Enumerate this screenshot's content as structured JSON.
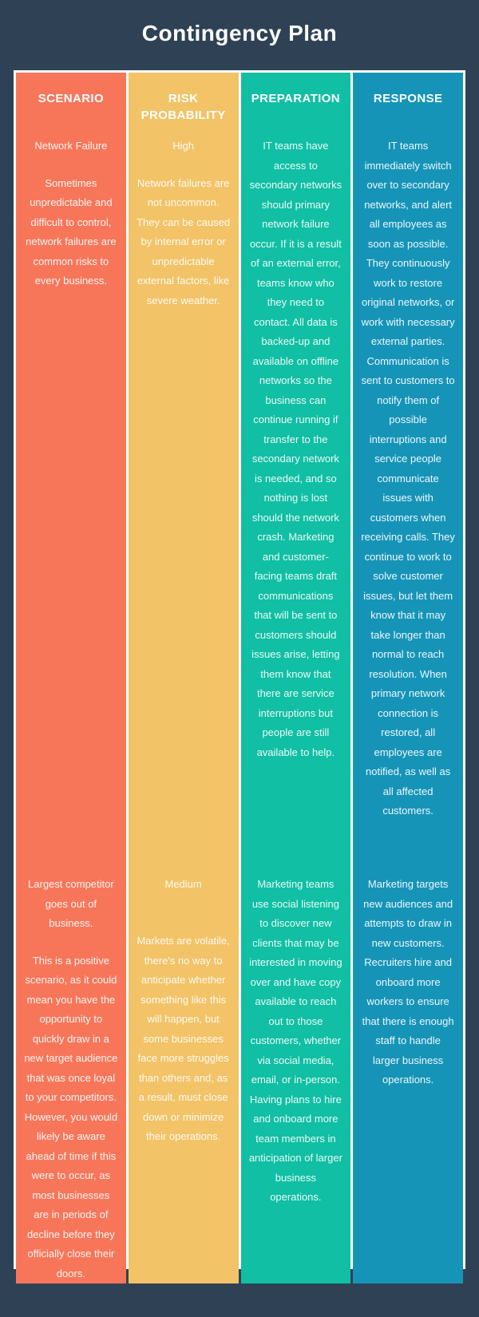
{
  "title": "Contingency Plan",
  "colors": {
    "background": "#2f4255",
    "table_border": "#ffffff",
    "scenario": "#f7765a",
    "risk_probability": "#f2c367",
    "preparation": "#10bfa4",
    "response": "#1694b8"
  },
  "table": {
    "columns": [
      {
        "header": "SCENARIO",
        "color": "#f7765a",
        "rows": [
          {
            "lead": "Network Failure",
            "body": "Sometimes unpredictable and difficult to control, network failures are common risks to every business."
          },
          {
            "lead": "Largest competitor goes out of business.",
            "body": "This is a positive scenario, as it could mean you have the opportunity to quickly draw in a new target audience that was once loyal to your competitors. However, you would likely be aware ahead of time if this were to occur, as most businesses are in periods of decline before they officially close their doors."
          }
        ]
      },
      {
        "header": "RISK PROBABILITY",
        "color": "#f2c367",
        "rows": [
          {
            "lead": "High",
            "body": "Network failures are not uncommon. They can be caused by internal error or unpredictable external factors, like severe weather."
          },
          {
            "lead": "Medium",
            "body": "Markets are volatile, there's no way to anticipate whether something like this will happen, but some businesses face more struggles than others and, as a result, must close down or minimize their operations."
          }
        ]
      },
      {
        "header": "PREPARATION",
        "color": "#10bfa4",
        "rows": [
          {
            "lead": "",
            "body": "IT teams have access to secondary networks should primary network failure occur. If it is a result of an external error, teams know who they need to contact. All data is backed-up and available on offline networks so the business can continue running if transfer to the secondary network is needed, and so nothing is lost should the network crash. Marketing and customer-facing teams draft communications that will be sent to customers should issues arise, letting them know that there are service interruptions but people are still available to help."
          },
          {
            "lead": "",
            "body": "Marketing teams use social listening to discover new clients that may be interested in moving over and have copy available to reach out to those customers, whether via social media, email, or in-person. Having plans to hire and onboard more team members in anticipation of larger business operations."
          }
        ]
      },
      {
        "header": "RESPONSE",
        "color": "#1694b8",
        "rows": [
          {
            "lead": "",
            "body": "IT teams immediately switch over to secondary networks, and alert all employees as soon as possible. They continuously work to restore original networks, or work with necessary external parties. Communication is sent to customers to notify them of possible interruptions and service people communicate issues with customers when receiving calls. They continue to work to solve customer issues, but let them know that it may take longer than normal to reach resolution. When primary network connection is restored, all employees are notified, as well as all affected customers."
          },
          {
            "lead": "",
            "body": "Marketing targets new audiences and attempts to draw in new customers. Recruiters hire and onboard more workers to ensure that there is enough staff to handle larger business operations."
          }
        ]
      }
    ]
  }
}
